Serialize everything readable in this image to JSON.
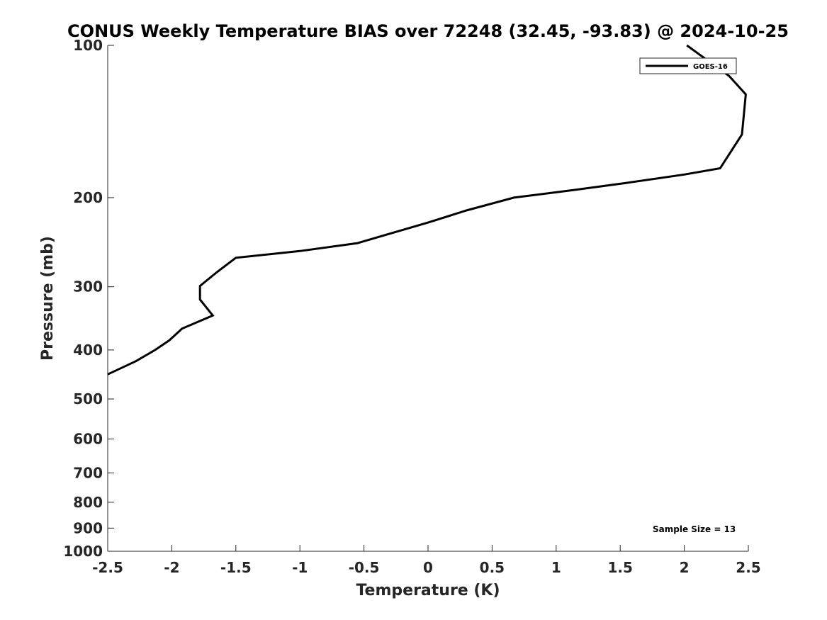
{
  "chart_data": {
    "type": "line",
    "title": "CONUS Weekly Temperature BIAS over 72248 (32.45, -93.83) @ 2024-10-25",
    "xlabel": "Temperature (K)",
    "ylabel": "Pressure (mb)",
    "xlim": [
      -2.5,
      2.5
    ],
    "ylim": [
      1000,
      100
    ],
    "yscale": "log",
    "y_reversed": true,
    "grid": false,
    "legend_position": "top-right",
    "x_ticks": [
      -2.5,
      -2,
      -1.5,
      -1,
      -0.5,
      0,
      0.5,
      1,
      1.5,
      2,
      2.5
    ],
    "x_tick_labels": [
      "-2.5",
      "-2",
      "-1.5",
      "-1",
      "-0.5",
      "0",
      "0.5",
      "1",
      "1.5",
      "2",
      "2.5"
    ],
    "y_ticks": [
      100,
      200,
      300,
      400,
      500,
      600,
      700,
      800,
      900,
      1000
    ],
    "y_tick_labels": [
      "100",
      "200",
      "300",
      "400",
      "500",
      "600",
      "700",
      "800",
      "900",
      "1000"
    ],
    "series": [
      {
        "name": "GOES-16",
        "color": "#000000",
        "points": [
          {
            "t": 2.02,
            "p": 100
          },
          {
            "t": 2.35,
            "p": 115
          },
          {
            "t": 2.48,
            "p": 125
          },
          {
            "t": 2.45,
            "p": 150
          },
          {
            "t": 2.28,
            "p": 175
          },
          {
            "t": 2.0,
            "p": 180
          },
          {
            "t": 1.55,
            "p": 187
          },
          {
            "t": 1.15,
            "p": 193
          },
          {
            "t": 0.67,
            "p": 200
          },
          {
            "t": 0.3,
            "p": 212
          },
          {
            "t": 0.0,
            "p": 224
          },
          {
            "t": -0.55,
            "p": 246
          },
          {
            "t": -1.0,
            "p": 255
          },
          {
            "t": -1.5,
            "p": 263
          },
          {
            "t": -1.65,
            "p": 281
          },
          {
            "t": -1.78,
            "p": 299
          },
          {
            "t": -1.78,
            "p": 318
          },
          {
            "t": -1.68,
            "p": 342
          },
          {
            "t": -1.92,
            "p": 363
          },
          {
            "t": -2.02,
            "p": 383
          },
          {
            "t": -2.13,
            "p": 400
          },
          {
            "t": -2.28,
            "p": 421
          },
          {
            "t": -2.5,
            "p": 447
          }
        ]
      }
    ],
    "annotations": [
      "Sample Size = 13"
    ]
  }
}
